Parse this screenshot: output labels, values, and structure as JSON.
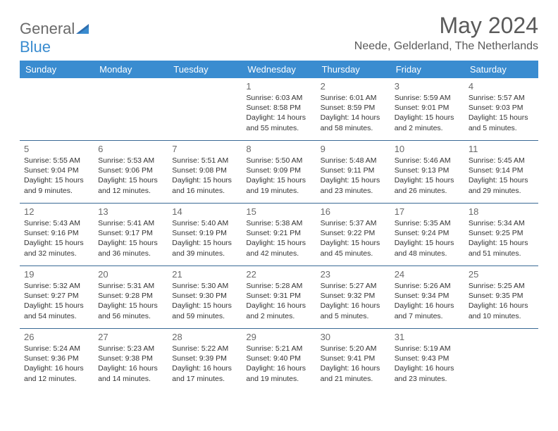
{
  "brand": {
    "part1": "General",
    "part2": "Blue"
  },
  "title": "May 2024",
  "location": "Neede, Gelderland, The Netherlands",
  "colors": {
    "header_bg": "#3a8cd0",
    "header_text": "#ffffff",
    "row_border": "#3a6a95",
    "title_text": "#5a5a5a",
    "body_text": "#333333",
    "brand_grey": "#6a6a6a",
    "brand_blue": "#3a8cd0",
    "background": "#ffffff"
  },
  "fonts": {
    "title_size_pt": 24,
    "location_size_pt": 12,
    "header_size_pt": 10,
    "daynum_size_pt": 10,
    "info_size_pt": 8
  },
  "weekdays": [
    "Sunday",
    "Monday",
    "Tuesday",
    "Wednesday",
    "Thursday",
    "Friday",
    "Saturday"
  ],
  "weeks": [
    [
      null,
      null,
      null,
      {
        "n": "1",
        "sunrise": "6:03 AM",
        "sunset": "8:58 PM",
        "daylight": "14 hours and 55 minutes."
      },
      {
        "n": "2",
        "sunrise": "6:01 AM",
        "sunset": "8:59 PM",
        "daylight": "14 hours and 58 minutes."
      },
      {
        "n": "3",
        "sunrise": "5:59 AM",
        "sunset": "9:01 PM",
        "daylight": "15 hours and 2 minutes."
      },
      {
        "n": "4",
        "sunrise": "5:57 AM",
        "sunset": "9:03 PM",
        "daylight": "15 hours and 5 minutes."
      }
    ],
    [
      {
        "n": "5",
        "sunrise": "5:55 AM",
        "sunset": "9:04 PM",
        "daylight": "15 hours and 9 minutes."
      },
      {
        "n": "6",
        "sunrise": "5:53 AM",
        "sunset": "9:06 PM",
        "daylight": "15 hours and 12 minutes."
      },
      {
        "n": "7",
        "sunrise": "5:51 AM",
        "sunset": "9:08 PM",
        "daylight": "15 hours and 16 minutes."
      },
      {
        "n": "8",
        "sunrise": "5:50 AM",
        "sunset": "9:09 PM",
        "daylight": "15 hours and 19 minutes."
      },
      {
        "n": "9",
        "sunrise": "5:48 AM",
        "sunset": "9:11 PM",
        "daylight": "15 hours and 23 minutes."
      },
      {
        "n": "10",
        "sunrise": "5:46 AM",
        "sunset": "9:13 PM",
        "daylight": "15 hours and 26 minutes."
      },
      {
        "n": "11",
        "sunrise": "5:45 AM",
        "sunset": "9:14 PM",
        "daylight": "15 hours and 29 minutes."
      }
    ],
    [
      {
        "n": "12",
        "sunrise": "5:43 AM",
        "sunset": "9:16 PM",
        "daylight": "15 hours and 32 minutes."
      },
      {
        "n": "13",
        "sunrise": "5:41 AM",
        "sunset": "9:17 PM",
        "daylight": "15 hours and 36 minutes."
      },
      {
        "n": "14",
        "sunrise": "5:40 AM",
        "sunset": "9:19 PM",
        "daylight": "15 hours and 39 minutes."
      },
      {
        "n": "15",
        "sunrise": "5:38 AM",
        "sunset": "9:21 PM",
        "daylight": "15 hours and 42 minutes."
      },
      {
        "n": "16",
        "sunrise": "5:37 AM",
        "sunset": "9:22 PM",
        "daylight": "15 hours and 45 minutes."
      },
      {
        "n": "17",
        "sunrise": "5:35 AM",
        "sunset": "9:24 PM",
        "daylight": "15 hours and 48 minutes."
      },
      {
        "n": "18",
        "sunrise": "5:34 AM",
        "sunset": "9:25 PM",
        "daylight": "15 hours and 51 minutes."
      }
    ],
    [
      {
        "n": "19",
        "sunrise": "5:32 AM",
        "sunset": "9:27 PM",
        "daylight": "15 hours and 54 minutes."
      },
      {
        "n": "20",
        "sunrise": "5:31 AM",
        "sunset": "9:28 PM",
        "daylight": "15 hours and 56 minutes."
      },
      {
        "n": "21",
        "sunrise": "5:30 AM",
        "sunset": "9:30 PM",
        "daylight": "15 hours and 59 minutes."
      },
      {
        "n": "22",
        "sunrise": "5:28 AM",
        "sunset": "9:31 PM",
        "daylight": "16 hours and 2 minutes."
      },
      {
        "n": "23",
        "sunrise": "5:27 AM",
        "sunset": "9:32 PM",
        "daylight": "16 hours and 5 minutes."
      },
      {
        "n": "24",
        "sunrise": "5:26 AM",
        "sunset": "9:34 PM",
        "daylight": "16 hours and 7 minutes."
      },
      {
        "n": "25",
        "sunrise": "5:25 AM",
        "sunset": "9:35 PM",
        "daylight": "16 hours and 10 minutes."
      }
    ],
    [
      {
        "n": "26",
        "sunrise": "5:24 AM",
        "sunset": "9:36 PM",
        "daylight": "16 hours and 12 minutes."
      },
      {
        "n": "27",
        "sunrise": "5:23 AM",
        "sunset": "9:38 PM",
        "daylight": "16 hours and 14 minutes."
      },
      {
        "n": "28",
        "sunrise": "5:22 AM",
        "sunset": "9:39 PM",
        "daylight": "16 hours and 17 minutes."
      },
      {
        "n": "29",
        "sunrise": "5:21 AM",
        "sunset": "9:40 PM",
        "daylight": "16 hours and 19 minutes."
      },
      {
        "n": "30",
        "sunrise": "5:20 AM",
        "sunset": "9:41 PM",
        "daylight": "16 hours and 21 minutes."
      },
      {
        "n": "31",
        "sunrise": "5:19 AM",
        "sunset": "9:43 PM",
        "daylight": "16 hours and 23 minutes."
      },
      null
    ]
  ],
  "labels": {
    "sunrise": "Sunrise:",
    "sunset": "Sunset:",
    "daylight": "Daylight:"
  }
}
